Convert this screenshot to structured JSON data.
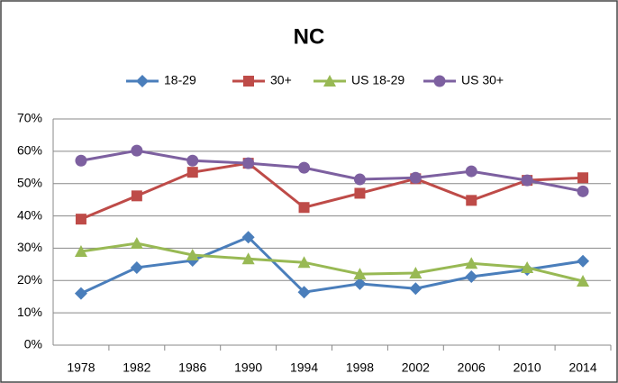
{
  "chart_data": {
    "type": "line",
    "title": "NC",
    "categories": [
      "1978",
      "1982",
      "1986",
      "1990",
      "1994",
      "1998",
      "2002",
      "2006",
      "2010",
      "2014"
    ],
    "series": [
      {
        "name": "18-29",
        "color": "#4a7ebb",
        "marker": "diamond",
        "values": [
          16,
          24,
          26.2,
          33.4,
          16.4,
          19,
          17.5,
          21.2,
          23.4,
          26
        ]
      },
      {
        "name": "30+",
        "color": "#be4b48",
        "marker": "square",
        "values": [
          39,
          46.2,
          53.5,
          56.3,
          42.6,
          47,
          51.5,
          44.8,
          51,
          51.8
        ]
      },
      {
        "name": "US 18-29",
        "color": "#98b954",
        "marker": "triangle",
        "values": [
          29,
          31.5,
          27.9,
          26.7,
          25.6,
          22,
          22.3,
          25.3,
          24,
          19.8
        ]
      },
      {
        "name": "US 30+",
        "color": "#7d60a0",
        "marker": "circle",
        "values": [
          57.1,
          60.2,
          57.1,
          56.3,
          54.9,
          51.3,
          51.8,
          53.8,
          51,
          47.6
        ]
      }
    ],
    "ylim": [
      0,
      70
    ],
    "yticks": [
      {
        "value": 0,
        "label": "0%"
      },
      {
        "value": 10,
        "label": "10%"
      },
      {
        "value": 20,
        "label": "20%"
      },
      {
        "value": 30,
        "label": "30%"
      },
      {
        "value": 40,
        "label": "40%"
      },
      {
        "value": 50,
        "label": "50%"
      },
      {
        "value": 60,
        "label": "60%"
      },
      {
        "value": 70,
        "label": "70%"
      }
    ],
    "grid": true,
    "legend": "top"
  }
}
